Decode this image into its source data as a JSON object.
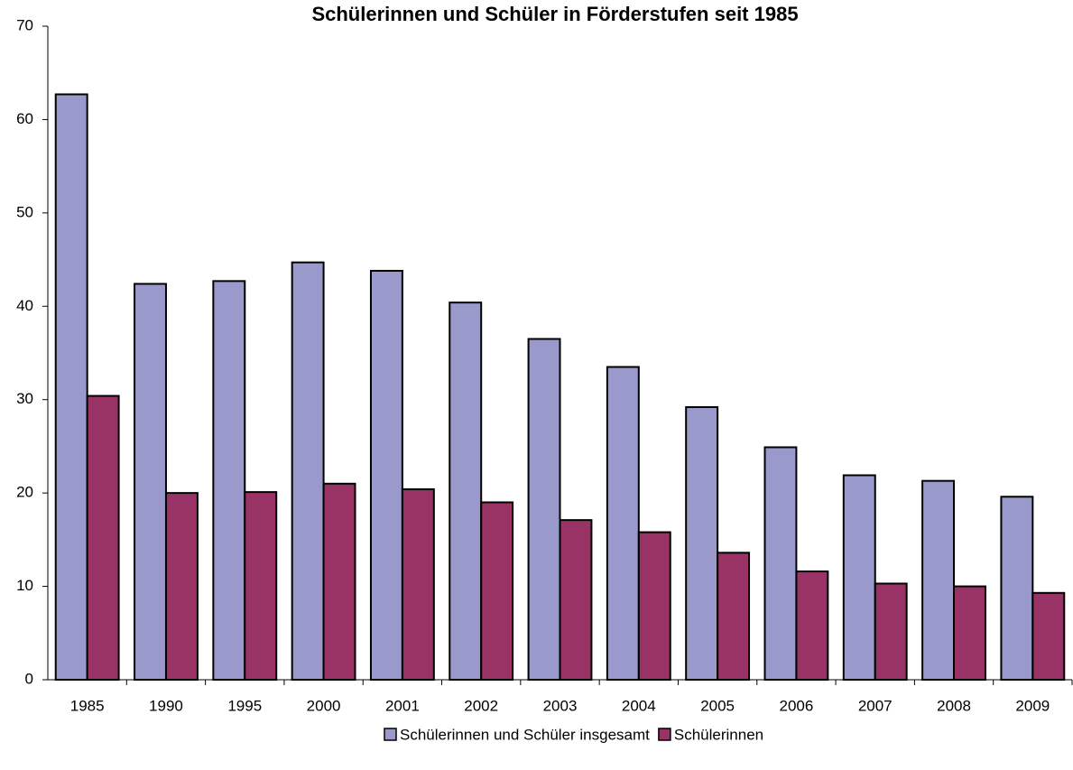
{
  "chart_data": {
    "type": "bar",
    "title": "Schülerinnen und Schüler in Förderstufen seit 1985",
    "categories": [
      "1985",
      "1990",
      "1995",
      "2000",
      "2001",
      "2002",
      "2003",
      "2004",
      "2005",
      "2006",
      "2007",
      "2008",
      "2009"
    ],
    "series": [
      {
        "name": "Schülerinnen und Schüler insgesamt",
        "color": "#9999cc",
        "values": [
          62.7,
          42.4,
          42.7,
          44.7,
          43.8,
          40.4,
          36.5,
          33.5,
          29.2,
          24.9,
          21.9,
          21.3,
          19.6
        ]
      },
      {
        "name": "Schülerinnen",
        "color": "#993366",
        "values": [
          30.4,
          20.0,
          20.1,
          21.0,
          20.4,
          19.0,
          17.1,
          15.8,
          13.6,
          11.6,
          10.3,
          10.0,
          9.3
        ]
      }
    ],
    "ylim": [
      0,
      70
    ],
    "yticks": [
      0,
      10,
      20,
      30,
      40,
      50,
      60,
      70
    ],
    "legend": "bottom"
  }
}
